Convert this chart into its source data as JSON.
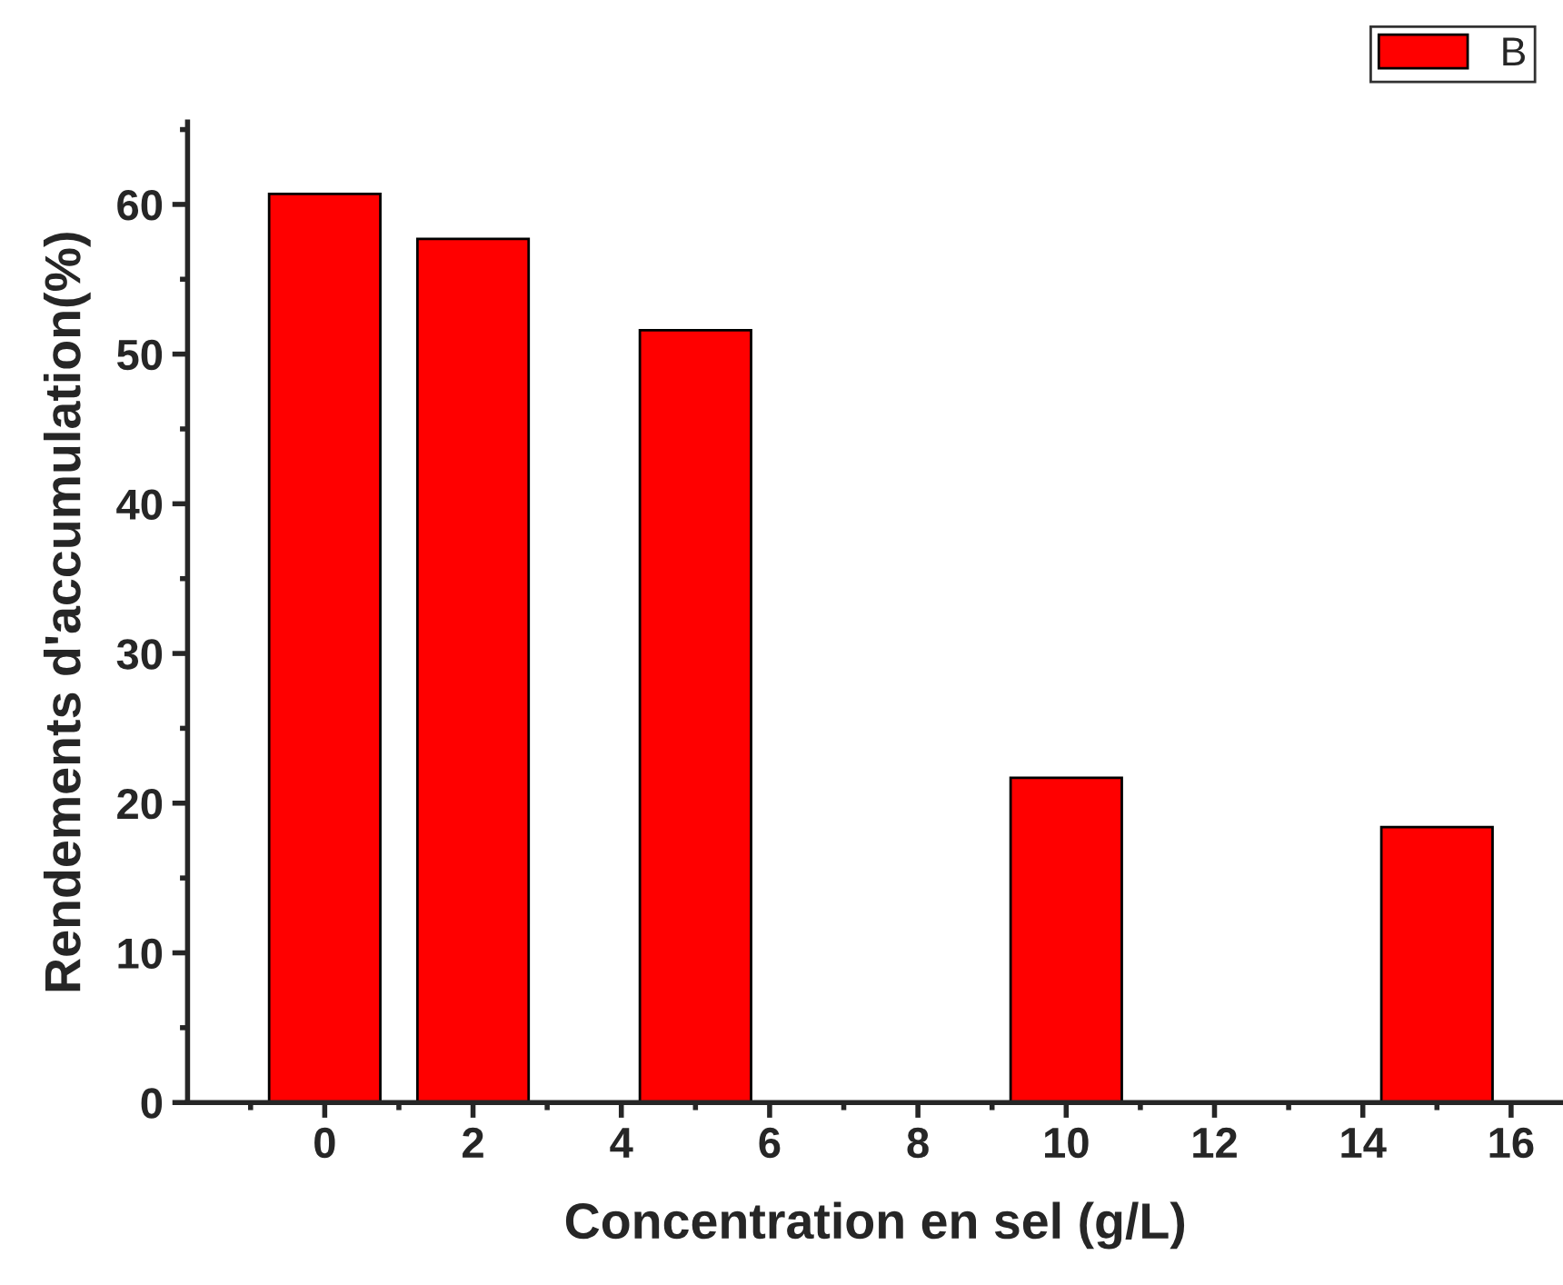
{
  "chart_data": {
    "type": "bar",
    "xlabel": "Concentration en sel (g/L)",
    "ylabel": "Rendements d'accumulation(%)",
    "x": [
      0,
      2,
      5,
      10,
      15
    ],
    "series": [
      {
        "name": "B",
        "color": "#ff0000",
        "values": [
          60.7,
          57.7,
          51.6,
          21.7,
          18.4
        ]
      }
    ],
    "xlim": [
      -1.85,
      16.7
    ],
    "xticks": [
      0,
      2,
      4,
      6,
      8,
      10,
      12,
      14,
      16
    ],
    "ylim": [
      0,
      65.5
    ],
    "yticks": [
      0,
      10,
      20,
      30,
      40,
      50,
      60
    ],
    "grid": false,
    "legend": "top right"
  }
}
